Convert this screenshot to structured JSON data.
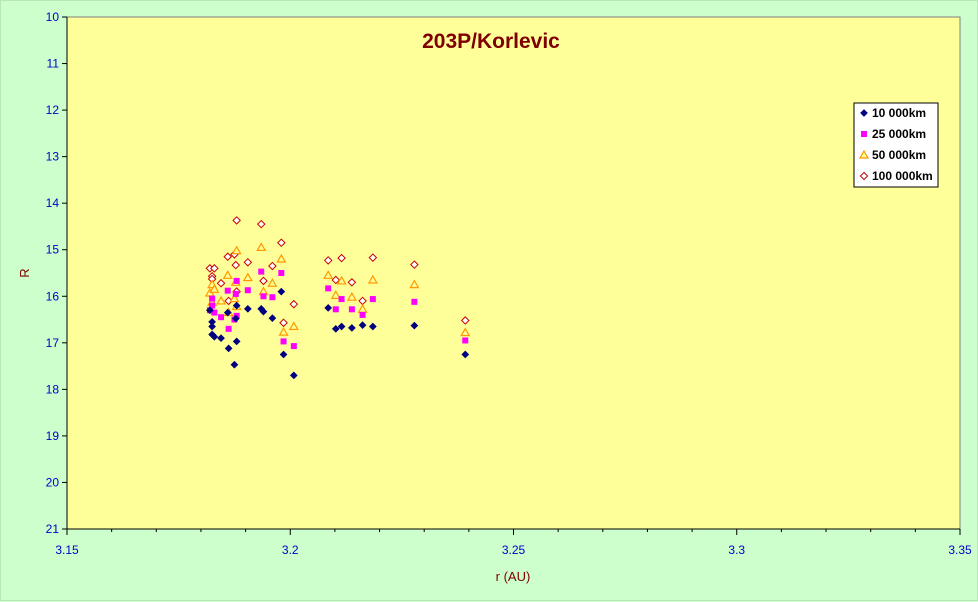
{
  "chart_data": {
    "type": "scatter",
    "title": "203P/Korlevic",
    "xlabel": "r (AU)",
    "ylabel": "R",
    "xlim": [
      3.15,
      3.35
    ],
    "ylim": [
      10,
      21
    ],
    "y_inverted": true,
    "x_ticks": [
      "3.15",
      "3.2",
      "3.25",
      "3.3",
      "3.35"
    ],
    "y_ticks": [
      "10",
      "11",
      "12",
      "13",
      "14",
      "15",
      "16",
      "17",
      "18",
      "19",
      "20",
      "21"
    ],
    "grid": false,
    "legend_position": "right",
    "plot_background": "#ffff99",
    "page_background": "#ccffcc",
    "series": [
      {
        "name": "10 000km",
        "marker": "diamond",
        "color": "#000080",
        "points": [
          [
            3.182,
            16.3
          ],
          [
            3.1825,
            16.55
          ],
          [
            3.1825,
            16.65
          ],
          [
            3.1825,
            16.82
          ],
          [
            3.183,
            16.87
          ],
          [
            3.1845,
            16.9
          ],
          [
            3.186,
            16.35
          ],
          [
            3.1862,
            17.12
          ],
          [
            3.1875,
            17.47
          ],
          [
            3.1878,
            16.48
          ],
          [
            3.188,
            16.2
          ],
          [
            3.188,
            16.97
          ],
          [
            3.1905,
            16.27
          ],
          [
            3.1935,
            16.27
          ],
          [
            3.194,
            16.33
          ],
          [
            3.196,
            16.47
          ],
          [
            3.198,
            15.9
          ],
          [
            3.1985,
            17.25
          ],
          [
            3.2008,
            17.7
          ],
          [
            3.2085,
            16.25
          ],
          [
            3.2102,
            16.7
          ],
          [
            3.2115,
            16.65
          ],
          [
            3.2138,
            16.68
          ],
          [
            3.2162,
            16.62
          ],
          [
            3.2185,
            16.65
          ],
          [
            3.2278,
            16.63
          ],
          [
            3.2392,
            17.25
          ]
        ]
      },
      {
        "name": "25 000km",
        "marker": "square",
        "color": "#ff00ff",
        "points": [
          [
            3.182,
            16.3
          ],
          [
            3.1825,
            16.05
          ],
          [
            3.1825,
            16.2
          ],
          [
            3.183,
            16.35
          ],
          [
            3.1845,
            16.45
          ],
          [
            3.186,
            15.88
          ],
          [
            3.1862,
            16.7
          ],
          [
            3.1875,
            16.5
          ],
          [
            3.1878,
            15.95
          ],
          [
            3.188,
            15.67
          ],
          [
            3.188,
            16.42
          ],
          [
            3.1905,
            15.87
          ],
          [
            3.1935,
            15.47
          ],
          [
            3.194,
            16.0
          ],
          [
            3.196,
            16.02
          ],
          [
            3.198,
            15.5
          ],
          [
            3.1985,
            16.97
          ],
          [
            3.2008,
            17.07
          ],
          [
            3.2085,
            15.83
          ],
          [
            3.2102,
            16.28
          ],
          [
            3.2115,
            16.06
          ],
          [
            3.2138,
            16.28
          ],
          [
            3.2162,
            16.4
          ],
          [
            3.2185,
            16.06
          ],
          [
            3.2278,
            16.12
          ],
          [
            3.2392,
            16.95
          ]
        ]
      },
      {
        "name": "50 000km",
        "marker": "triangle",
        "color": "#ff9900",
        "points": [
          [
            3.182,
            15.93
          ],
          [
            3.1825,
            15.75
          ],
          [
            3.1825,
            16.13
          ],
          [
            3.183,
            15.85
          ],
          [
            3.1845,
            16.1
          ],
          [
            3.186,
            15.55
          ],
          [
            3.1862,
            16.35
          ],
          [
            3.1875,
            16.05
          ],
          [
            3.1878,
            15.7
          ],
          [
            3.188,
            15.02
          ],
          [
            3.188,
            16.22
          ],
          [
            3.1905,
            15.6
          ],
          [
            3.1935,
            14.95
          ],
          [
            3.194,
            15.9
          ],
          [
            3.196,
            15.72
          ],
          [
            3.198,
            15.2
          ],
          [
            3.1985,
            16.77
          ],
          [
            3.2008,
            16.65
          ],
          [
            3.2085,
            15.55
          ],
          [
            3.2102,
            15.98
          ],
          [
            3.2115,
            15.67
          ],
          [
            3.2138,
            16.02
          ],
          [
            3.2162,
            16.28
          ],
          [
            3.2185,
            15.65
          ],
          [
            3.2278,
            15.75
          ],
          [
            3.2392,
            16.78
          ]
        ]
      },
      {
        "name": "100 000km",
        "marker": "diamond-open",
        "color": "#cc0000",
        "points": [
          [
            3.182,
            15.4
          ],
          [
            3.1825,
            15.57
          ],
          [
            3.1825,
            15.63
          ],
          [
            3.183,
            15.4
          ],
          [
            3.1845,
            15.72
          ],
          [
            3.186,
            15.15
          ],
          [
            3.1862,
            16.1
          ],
          [
            3.1875,
            15.1
          ],
          [
            3.1878,
            15.33
          ],
          [
            3.188,
            14.37
          ],
          [
            3.188,
            15.9
          ],
          [
            3.1905,
            15.27
          ],
          [
            3.1935,
            14.45
          ],
          [
            3.194,
            15.67
          ],
          [
            3.196,
            15.35
          ],
          [
            3.198,
            14.85
          ],
          [
            3.1985,
            16.57
          ],
          [
            3.2008,
            16.17
          ],
          [
            3.2085,
            15.23
          ],
          [
            3.2102,
            15.65
          ],
          [
            3.2115,
            15.18
          ],
          [
            3.2138,
            15.7
          ],
          [
            3.2162,
            16.1
          ],
          [
            3.2185,
            15.17
          ],
          [
            3.2278,
            15.32
          ],
          [
            3.2392,
            16.52
          ]
        ]
      }
    ]
  }
}
